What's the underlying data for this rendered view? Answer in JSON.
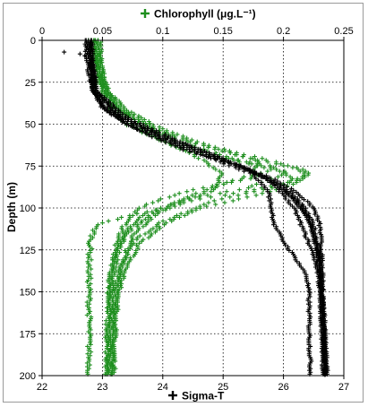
{
  "chart_data": {
    "type": "scatter",
    "y_axis": {
      "label": "Depth (m)",
      "range": [
        0,
        200
      ],
      "inverted": true,
      "ticks": [
        "0",
        "25",
        "50",
        "75",
        "100",
        "125",
        "150",
        "175",
        "200"
      ],
      "tick_values": [
        0,
        25,
        50,
        75,
        100,
        125,
        150,
        175,
        200
      ]
    },
    "x_top_axis": {
      "label": "Chlorophyll (μg.L⁻¹)",
      "marker": "+",
      "range": [
        0,
        0.25
      ],
      "ticks": [
        "0",
        "0.05",
        "0.1",
        "0.15",
        "0.2",
        "0.25"
      ],
      "tick_values": [
        0,
        0.05,
        0.1,
        0.15,
        0.2,
        0.25
      ]
    },
    "x_bottom_axis": {
      "label": "Sigma-T",
      "marker": "+",
      "range": [
        22,
        27
      ],
      "ticks": [
        "22",
        "23",
        "24",
        "25",
        "26",
        "27"
      ],
      "tick_values": [
        22,
        23,
        24,
        25,
        26,
        27
      ]
    },
    "grid": true,
    "series": [
      {
        "name": "Chlorophyll (μg.L⁻¹)",
        "axis": "top",
        "color": "#1f8f1f",
        "marker": "+",
        "profiles": [
          [
            [
              0.04,
              0
            ],
            [
              0.042,
              10
            ],
            [
              0.045,
              20
            ],
            [
              0.05,
              30
            ],
            [
              0.06,
              40
            ],
            [
              0.08,
              50
            ],
            [
              0.11,
              60
            ],
            [
              0.15,
              70
            ],
            [
              0.19,
              75
            ],
            [
              0.2,
              80
            ],
            [
              0.17,
              88
            ],
            [
              0.12,
              95
            ],
            [
              0.08,
              105
            ],
            [
              0.065,
              120
            ],
            [
              0.06,
              135
            ],
            [
              0.058,
              150
            ],
            [
              0.056,
              175
            ],
            [
              0.055,
              200
            ]
          ],
          [
            [
              0.043,
              0
            ],
            [
              0.045,
              10
            ],
            [
              0.047,
              20
            ],
            [
              0.052,
              30
            ],
            [
              0.065,
              40
            ],
            [
              0.09,
              52
            ],
            [
              0.13,
              62
            ],
            [
              0.17,
              70
            ],
            [
              0.21,
              76
            ],
            [
              0.22,
              80
            ],
            [
              0.19,
              88
            ],
            [
              0.14,
              96
            ],
            [
              0.1,
              108
            ],
            [
              0.075,
              120
            ],
            [
              0.065,
              135
            ],
            [
              0.06,
              150
            ],
            [
              0.058,
              175
            ],
            [
              0.057,
              200
            ]
          ],
          [
            [
              0.045,
              0
            ],
            [
              0.047,
              10
            ],
            [
              0.05,
              20
            ],
            [
              0.055,
              30
            ],
            [
              0.07,
              42
            ],
            [
              0.1,
              53
            ],
            [
              0.14,
              63
            ],
            [
              0.19,
              72
            ],
            [
              0.22,
              78
            ],
            [
              0.215,
              84
            ],
            [
              0.18,
              92
            ],
            [
              0.13,
              100
            ],
            [
              0.1,
              110
            ],
            [
              0.08,
              122
            ],
            [
              0.07,
              135
            ],
            [
              0.063,
              150
            ],
            [
              0.06,
              175
            ],
            [
              0.058,
              200
            ]
          ],
          [
            [
              0.041,
              0
            ],
            [
              0.044,
              10
            ],
            [
              0.046,
              20
            ],
            [
              0.049,
              30
            ],
            [
              0.055,
              40
            ],
            [
              0.07,
              50
            ],
            [
              0.09,
              57
            ],
            [
              0.12,
              65
            ],
            [
              0.16,
              72
            ],
            [
              0.19,
              77
            ],
            [
              0.17,
              83
            ],
            [
              0.12,
              90
            ],
            [
              0.085,
              98
            ],
            [
              0.07,
              108
            ],
            [
              0.062,
              120
            ],
            [
              0.057,
              140
            ],
            [
              0.055,
              170
            ],
            [
              0.054,
              200
            ]
          ],
          [
            [
              0.047,
              0
            ],
            [
              0.048,
              10
            ],
            [
              0.05,
              20
            ],
            [
              0.054,
              30
            ],
            [
              0.062,
              40
            ],
            [
              0.08,
              48
            ],
            [
              0.11,
              58
            ],
            [
              0.15,
              66
            ],
            [
              0.18,
              72
            ],
            [
              0.175,
              80
            ],
            [
              0.14,
              88
            ],
            [
              0.11,
              97
            ],
            [
              0.09,
              106
            ],
            [
              0.075,
              117
            ],
            [
              0.068,
              130
            ],
            [
              0.062,
              150
            ],
            [
              0.06,
              175
            ],
            [
              0.059,
              200
            ]
          ],
          [
            [
              0.042,
              0
            ],
            [
              0.045,
              10
            ],
            [
              0.048,
              20
            ],
            [
              0.052,
              30
            ],
            [
              0.06,
              40
            ],
            [
              0.075,
              50
            ],
            [
              0.1,
              60
            ],
            [
              0.13,
              70
            ],
            [
              0.15,
              80
            ],
            [
              0.14,
              90
            ],
            [
              0.1,
              100
            ],
            [
              0.07,
              105
            ],
            [
              0.045,
              110
            ],
            [
              0.04,
              120
            ],
            [
              0.039,
              135
            ],
            [
              0.039,
              150
            ],
            [
              0.039,
              175
            ],
            [
              0.039,
              200
            ]
          ],
          [
            [
              0.044,
              0
            ],
            [
              0.046,
              10
            ],
            [
              0.049,
              20
            ],
            [
              0.053,
              30
            ],
            [
              0.063,
              40
            ],
            [
              0.085,
              52
            ],
            [
              0.12,
              62
            ],
            [
              0.16,
              71
            ],
            [
              0.2,
              78
            ],
            [
              0.21,
              84
            ],
            [
              0.17,
              90
            ],
            [
              0.12,
              96
            ],
            [
              0.09,
              104
            ],
            [
              0.07,
              115
            ],
            [
              0.06,
              128
            ],
            [
              0.056,
              145
            ],
            [
              0.054,
              170
            ],
            [
              0.053,
              200
            ]
          ]
        ]
      },
      {
        "name": "Sigma-T",
        "axis": "bottom",
        "color": "#000000",
        "marker": "+",
        "profiles": [
          [
            [
              22.35,
              7
            ],
            [
              22.6,
              8
            ],
            [
              22.8,
              10
            ],
            [
              22.82,
              20
            ],
            [
              22.85,
              30
            ],
            [
              23.0,
              40
            ],
            [
              23.3,
              48
            ],
            [
              23.8,
              57
            ],
            [
              24.4,
              66
            ],
            [
              25.2,
              74
            ],
            [
              25.8,
              82
            ],
            [
              26.2,
              90
            ],
            [
              26.5,
              100
            ],
            [
              26.6,
              110
            ],
            [
              26.62,
              120
            ],
            [
              26.64,
              140
            ],
            [
              26.66,
              160
            ],
            [
              26.68,
              180
            ],
            [
              26.7,
              200
            ]
          ],
          [
            [
              22.72,
              0
            ],
            [
              22.74,
              10
            ],
            [
              22.78,
              20
            ],
            [
              22.82,
              30
            ],
            [
              23.1,
              42
            ],
            [
              23.6,
              52
            ],
            [
              24.3,
              63
            ],
            [
              25.0,
              72
            ],
            [
              25.6,
              80
            ],
            [
              26.1,
              90
            ],
            [
              26.35,
              100
            ],
            [
              26.5,
              110
            ],
            [
              26.58,
              125
            ],
            [
              26.62,
              140
            ],
            [
              26.66,
              160
            ],
            [
              26.7,
              180
            ],
            [
              26.72,
              200
            ]
          ],
          [
            [
              22.8,
              0
            ],
            [
              22.82,
              10
            ],
            [
              22.85,
              20
            ],
            [
              22.88,
              30
            ],
            [
              23.2,
              43
            ],
            [
              23.8,
              55
            ],
            [
              24.6,
              66
            ],
            [
              25.3,
              75
            ],
            [
              25.7,
              82
            ],
            [
              26.0,
              92
            ],
            [
              26.2,
              102
            ],
            [
              26.35,
              115
            ],
            [
              26.5,
              128
            ],
            [
              26.58,
              140
            ],
            [
              26.62,
              160
            ],
            [
              26.65,
              180
            ],
            [
              26.66,
              200
            ]
          ],
          [
            [
              22.78,
              0
            ],
            [
              22.8,
              10
            ],
            [
              22.83,
              20
            ],
            [
              22.86,
              30
            ],
            [
              23.0,
              40
            ],
            [
              23.5,
              52
            ],
            [
              24.2,
              62
            ],
            [
              24.9,
              72
            ],
            [
              25.5,
              80
            ],
            [
              25.75,
              90
            ],
            [
              25.8,
              100
            ],
            [
              25.85,
              110
            ],
            [
              26.0,
              120
            ],
            [
              26.2,
              130
            ],
            [
              26.38,
              140
            ],
            [
              26.42,
              150
            ],
            [
              26.43,
              175
            ],
            [
              26.45,
              200
            ]
          ],
          [
            [
              22.75,
              0
            ],
            [
              22.78,
              10
            ],
            [
              22.81,
              20
            ],
            [
              22.85,
              30
            ],
            [
              23.3,
              45
            ],
            [
              24.0,
              57
            ],
            [
              24.8,
              68
            ],
            [
              25.4,
              77
            ],
            [
              25.9,
              86
            ],
            [
              26.2,
              96
            ],
            [
              26.4,
              106
            ],
            [
              26.55,
              120
            ],
            [
              26.6,
              135
            ],
            [
              26.63,
              150
            ],
            [
              26.67,
              170
            ],
            [
              26.7,
              200
            ]
          ],
          [
            [
              22.82,
              0
            ],
            [
              22.84,
              10
            ],
            [
              22.87,
              20
            ],
            [
              22.9,
              30
            ],
            [
              23.4,
              46
            ],
            [
              24.2,
              59
            ],
            [
              24.9,
              69
            ],
            [
              25.5,
              78
            ],
            [
              26.0,
              88
            ],
            [
              26.3,
              98
            ],
            [
              26.45,
              110
            ],
            [
              26.55,
              125
            ],
            [
              26.6,
              145
            ],
            [
              26.63,
              165
            ],
            [
              26.65,
              185
            ],
            [
              26.66,
              200
            ]
          ],
          [
            [
              22.8,
              0
            ],
            [
              22.82,
              10
            ],
            [
              22.86,
              20
            ],
            [
              22.9,
              30
            ],
            [
              23.2,
              44
            ],
            [
              23.9,
              56
            ],
            [
              24.7,
              67
            ],
            [
              25.3,
              76
            ],
            [
              25.8,
              84
            ],
            [
              26.15,
              94
            ],
            [
              26.4,
              105
            ],
            [
              26.52,
              118
            ],
            [
              26.6,
              135
            ],
            [
              26.64,
              155
            ],
            [
              26.68,
              180
            ],
            [
              26.7,
              200
            ]
          ]
        ]
      }
    ]
  }
}
